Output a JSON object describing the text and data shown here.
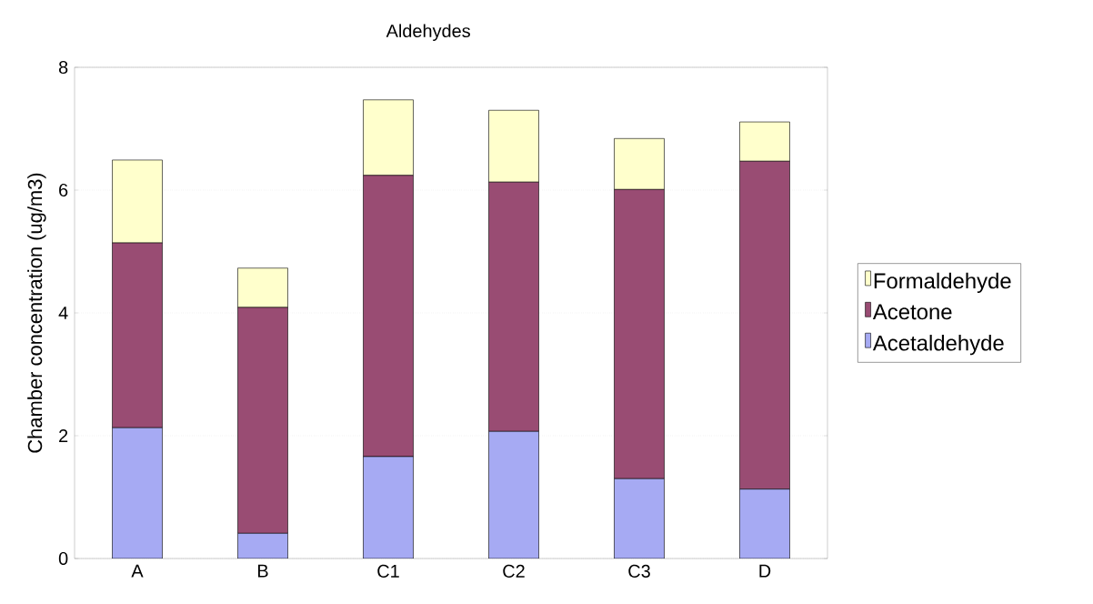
{
  "chart_data": {
    "type": "bar",
    "title": "Aldehydes",
    "ylabel": "Chamber concentration (ug/m3)",
    "categories": [
      "A",
      "B",
      "C1",
      "C2",
      "C3",
      "D"
    ],
    "stacked": true,
    "series": [
      {
        "name": "Acetaldehyde",
        "color": "#a6aaf3",
        "values": [
          2.13,
          0.41,
          1.66,
          2.07,
          1.3,
          1.13
        ]
      },
      {
        "name": "Acetone",
        "color": "#994c73",
        "values": [
          3.01,
          3.68,
          4.58,
          4.06,
          4.71,
          5.34
        ]
      },
      {
        "name": "Formaldehyde",
        "color": "#ffffcc",
        "values": [
          1.35,
          0.64,
          1.23,
          1.17,
          0.83,
          0.64
        ]
      }
    ],
    "ylim": [
      0,
      8
    ],
    "yticks": [
      0,
      2,
      4,
      6,
      8
    ],
    "grid": "y",
    "legend": "right"
  }
}
